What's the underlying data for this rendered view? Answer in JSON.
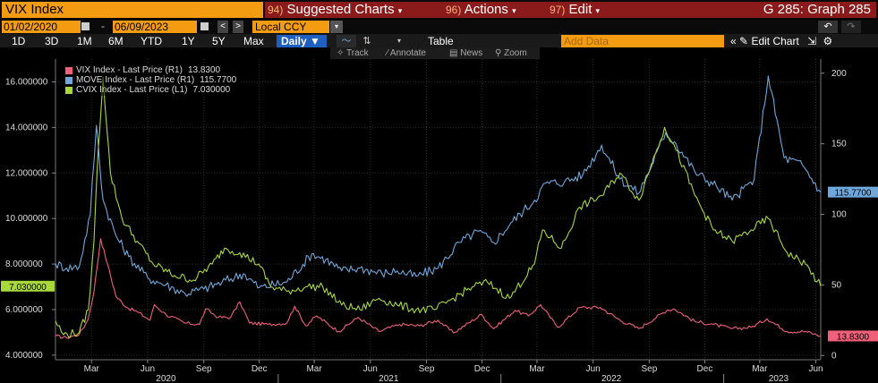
{
  "header": {
    "title": "VIX Index",
    "menus": [
      {
        "num": "94)",
        "label": "Suggested Charts"
      },
      {
        "num": "96)",
        "label": "Actions"
      },
      {
        "num": "97)",
        "label": "Edit"
      }
    ],
    "graph_id": "G 285: Graph 285"
  },
  "toolbar": {
    "start_date": "01/02/2020",
    "end_date": "06/09/2023",
    "currency": "Local CCY",
    "ranges": [
      "1D",
      "3D",
      "1M",
      "6M",
      "YTD",
      "1Y",
      "5Y",
      "Max"
    ],
    "frequency": "Daily",
    "table_label": "Table",
    "add_data_placeholder": "Add Data",
    "edit_chart_label": "Edit Chart"
  },
  "tools": {
    "track": "Track",
    "annotate": "Annotate",
    "news": "News",
    "zoom": "Zoom"
  },
  "colors": {
    "vix": "#f0607a",
    "move": "#6fa8dc",
    "cvix": "#a8d83a",
    "accent_orange": "#f39c12",
    "menu_red": "#8b1a1a"
  },
  "chart_data": {
    "type": "line",
    "x_range": [
      "2020-01-02",
      "2023-06-09"
    ],
    "x_ticks": [
      {
        "date": "2020-03-01",
        "label": "Mar"
      },
      {
        "date": "2020-06-01",
        "label": "Jun"
      },
      {
        "date": "2020-09-01",
        "label": "Sep"
      },
      {
        "date": "2020-12-01",
        "label": "Dec"
      },
      {
        "date": "2021-03-01",
        "label": "Mar"
      },
      {
        "date": "2021-06-01",
        "label": "Jun"
      },
      {
        "date": "2021-09-01",
        "label": "Sep"
      },
      {
        "date": "2021-12-01",
        "label": "Dec"
      },
      {
        "date": "2022-03-01",
        "label": "Mar"
      },
      {
        "date": "2022-06-01",
        "label": "Jun"
      },
      {
        "date": "2022-09-01",
        "label": "Sep"
      },
      {
        "date": "2022-12-01",
        "label": "Dec"
      },
      {
        "date": "2023-03-01",
        "label": "Mar"
      },
      {
        "date": "2023-06-01",
        "label": "Jun"
      }
    ],
    "year_labels": [
      {
        "date": "2020-07-01",
        "label": "2020"
      },
      {
        "date": "2021-07-01",
        "label": "2021"
      },
      {
        "date": "2022-07-01",
        "label": "2022"
      },
      {
        "date": "2023-04-01",
        "label": "2023"
      }
    ],
    "left_axis": {
      "ylim": [
        3.8,
        17.0
      ],
      "ticks": [
        4,
        6,
        8,
        10,
        12,
        14,
        16
      ],
      "tick_labels": [
        "4.000000",
        "6.000000",
        "8.000000",
        "10.000000",
        "12.000000",
        "14.000000",
        "16.000000"
      ]
    },
    "right_axis": {
      "ylim": [
        -3,
        210
      ],
      "ticks": [
        0,
        50,
        100,
        150,
        200
      ],
      "tick_labels": [
        "0",
        "50",
        "100",
        "150",
        "200"
      ]
    },
    "legend_position": "top-left",
    "series": [
      {
        "name": "VIX Index - Last Price (R1)",
        "last": "13.8300",
        "last_value": 13.83,
        "axis": "right",
        "points": [
          [
            "2020-01-02",
            13.8
          ],
          [
            "2020-01-20",
            12.5
          ],
          [
            "2020-02-10",
            15.0
          ],
          [
            "2020-02-24",
            25.0
          ],
          [
            "2020-03-05",
            45.0
          ],
          [
            "2020-03-16",
            82.7
          ],
          [
            "2020-03-27",
            65.0
          ],
          [
            "2020-04-10",
            42.0
          ],
          [
            "2020-04-28",
            34.0
          ],
          [
            "2020-05-15",
            31.0
          ],
          [
            "2020-06-05",
            25.0
          ],
          [
            "2020-06-12",
            36.0
          ],
          [
            "2020-07-01",
            29.0
          ],
          [
            "2020-08-01",
            23.0
          ],
          [
            "2020-08-25",
            22.0
          ],
          [
            "2020-09-04",
            33.0
          ],
          [
            "2020-09-25",
            27.0
          ],
          [
            "2020-10-15",
            27.0
          ],
          [
            "2020-10-30",
            38.0
          ],
          [
            "2020-11-15",
            23.0
          ],
          [
            "2020-12-15",
            22.0
          ],
          [
            "2021-01-15",
            23.0
          ],
          [
            "2021-01-28",
            35.0
          ],
          [
            "2021-02-15",
            21.0
          ],
          [
            "2021-03-05",
            28.0
          ],
          [
            "2021-04-10",
            17.0
          ],
          [
            "2021-05-12",
            27.0
          ],
          [
            "2021-06-15",
            17.0
          ],
          [
            "2021-07-19",
            22.0
          ],
          [
            "2021-08-20",
            21.0
          ],
          [
            "2021-09-20",
            25.0
          ],
          [
            "2021-10-15",
            16.0
          ],
          [
            "2021-11-30",
            29.0
          ],
          [
            "2021-12-20",
            19.0
          ],
          [
            "2022-01-24",
            32.0
          ],
          [
            "2022-02-15",
            28.0
          ],
          [
            "2022-03-07",
            36.0
          ],
          [
            "2022-04-04",
            20.0
          ],
          [
            "2022-05-10",
            34.0
          ],
          [
            "2022-06-13",
            34.0
          ],
          [
            "2022-07-15",
            25.0
          ],
          [
            "2022-08-15",
            19.0
          ],
          [
            "2022-09-30",
            32.0
          ],
          [
            "2022-10-12",
            33.0
          ],
          [
            "2022-11-15",
            24.0
          ],
          [
            "2022-12-15",
            22.0
          ],
          [
            "2023-01-15",
            19.0
          ],
          [
            "2023-02-15",
            20.0
          ],
          [
            "2023-03-13",
            26.0
          ],
          [
            "2023-04-15",
            17.0
          ],
          [
            "2023-05-15",
            17.0
          ],
          [
            "2023-06-09",
            13.83
          ]
        ]
      },
      {
        "name": "MOVE Index - Last Price (R1)",
        "last": "115.7700",
        "last_value": 115.77,
        "axis": "right",
        "points": [
          [
            "2020-01-02",
            65.0
          ],
          [
            "2020-01-20",
            62.0
          ],
          [
            "2020-02-10",
            63.0
          ],
          [
            "2020-02-28",
            100.0
          ],
          [
            "2020-03-09",
            163.0
          ],
          [
            "2020-03-20",
            110.0
          ],
          [
            "2020-04-10",
            85.0
          ],
          [
            "2020-05-01",
            70.0
          ],
          [
            "2020-06-01",
            55.0
          ],
          [
            "2020-07-01",
            50.0
          ],
          [
            "2020-08-01",
            44.0
          ],
          [
            "2020-09-01",
            47.0
          ],
          [
            "2020-10-01",
            52.0
          ],
          [
            "2020-11-05",
            58.0
          ],
          [
            "2020-12-01",
            48.0
          ],
          [
            "2021-01-15",
            52.0
          ],
          [
            "2021-02-25",
            72.0
          ],
          [
            "2021-03-20",
            68.0
          ],
          [
            "2021-04-15",
            60.0
          ],
          [
            "2021-05-15",
            62.0
          ],
          [
            "2021-06-20",
            58.0
          ],
          [
            "2021-07-15",
            60.0
          ],
          [
            "2021-08-15",
            56.0
          ],
          [
            "2021-09-20",
            62.0
          ],
          [
            "2021-10-25",
            80.0
          ],
          [
            "2021-11-25",
            88.0
          ],
          [
            "2021-12-20",
            80.0
          ],
          [
            "2022-01-20",
            95.0
          ],
          [
            "2022-02-25",
            110.0
          ],
          [
            "2022-03-15",
            122.0
          ],
          [
            "2022-04-15",
            123.0
          ],
          [
            "2022-05-15",
            128.0
          ],
          [
            "2022-06-15",
            149.0
          ],
          [
            "2022-07-15",
            125.0
          ],
          [
            "2022-08-15",
            115.0
          ],
          [
            "2022-09-28",
            158.0
          ],
          [
            "2022-10-15",
            150.0
          ],
          [
            "2022-11-15",
            130.0
          ],
          [
            "2022-12-20",
            120.0
          ],
          [
            "2023-01-15",
            110.0
          ],
          [
            "2023-02-20",
            125.0
          ],
          [
            "2023-03-15",
            198.0
          ],
          [
            "2023-04-10",
            140.0
          ],
          [
            "2023-05-10",
            135.0
          ],
          [
            "2023-06-09",
            115.77
          ]
        ]
      },
      {
        "name": "CVIX Index - Last Price (L1)",
        "last": "7.030000",
        "last_value": 7.03,
        "axis": "left",
        "points": [
          [
            "2020-01-02",
            5.5
          ],
          [
            "2020-01-15",
            4.9
          ],
          [
            "2020-02-10",
            5.0
          ],
          [
            "2020-02-25",
            6.0
          ],
          [
            "2020-03-05",
            9.0
          ],
          [
            "2020-03-12",
            13.0
          ],
          [
            "2020-03-20",
            16.2
          ],
          [
            "2020-04-01",
            12.0
          ],
          [
            "2020-04-20",
            10.0
          ],
          [
            "2020-05-15",
            9.0
          ],
          [
            "2020-06-10",
            8.0
          ],
          [
            "2020-07-15",
            7.5
          ],
          [
            "2020-08-15",
            7.3
          ],
          [
            "2020-09-15",
            8.0
          ],
          [
            "2020-10-05",
            8.7
          ],
          [
            "2020-10-30",
            8.5
          ],
          [
            "2020-11-30",
            8.0
          ],
          [
            "2020-12-20",
            7.0
          ],
          [
            "2021-01-15",
            6.8
          ],
          [
            "2021-02-15",
            7.0
          ],
          [
            "2021-03-15",
            7.0
          ],
          [
            "2021-04-15",
            6.2
          ],
          [
            "2021-05-15",
            6.0
          ],
          [
            "2021-06-15",
            6.5
          ],
          [
            "2021-07-15",
            6.2
          ],
          [
            "2021-08-15",
            6.0
          ],
          [
            "2021-09-15",
            6.0
          ],
          [
            "2021-10-15",
            6.5
          ],
          [
            "2021-11-15",
            7.0
          ],
          [
            "2021-12-10",
            7.2
          ],
          [
            "2022-01-15",
            6.5
          ],
          [
            "2022-02-25",
            8.0
          ],
          [
            "2022-03-10",
            9.5
          ],
          [
            "2022-04-10",
            8.7
          ],
          [
            "2022-05-10",
            10.5
          ],
          [
            "2022-06-15",
            11.0
          ],
          [
            "2022-07-15",
            12.0
          ],
          [
            "2022-08-15",
            10.8
          ],
          [
            "2022-09-26",
            14.0
          ],
          [
            "2022-10-15",
            13.0
          ],
          [
            "2022-11-15",
            11.0
          ],
          [
            "2022-12-15",
            9.5
          ],
          [
            "2023-01-15",
            9.0
          ],
          [
            "2023-02-15",
            9.5
          ],
          [
            "2023-03-15",
            10.0
          ],
          [
            "2023-04-15",
            8.5
          ],
          [
            "2023-05-15",
            8.0
          ],
          [
            "2023-06-09",
            7.03
          ]
        ]
      }
    ]
  }
}
